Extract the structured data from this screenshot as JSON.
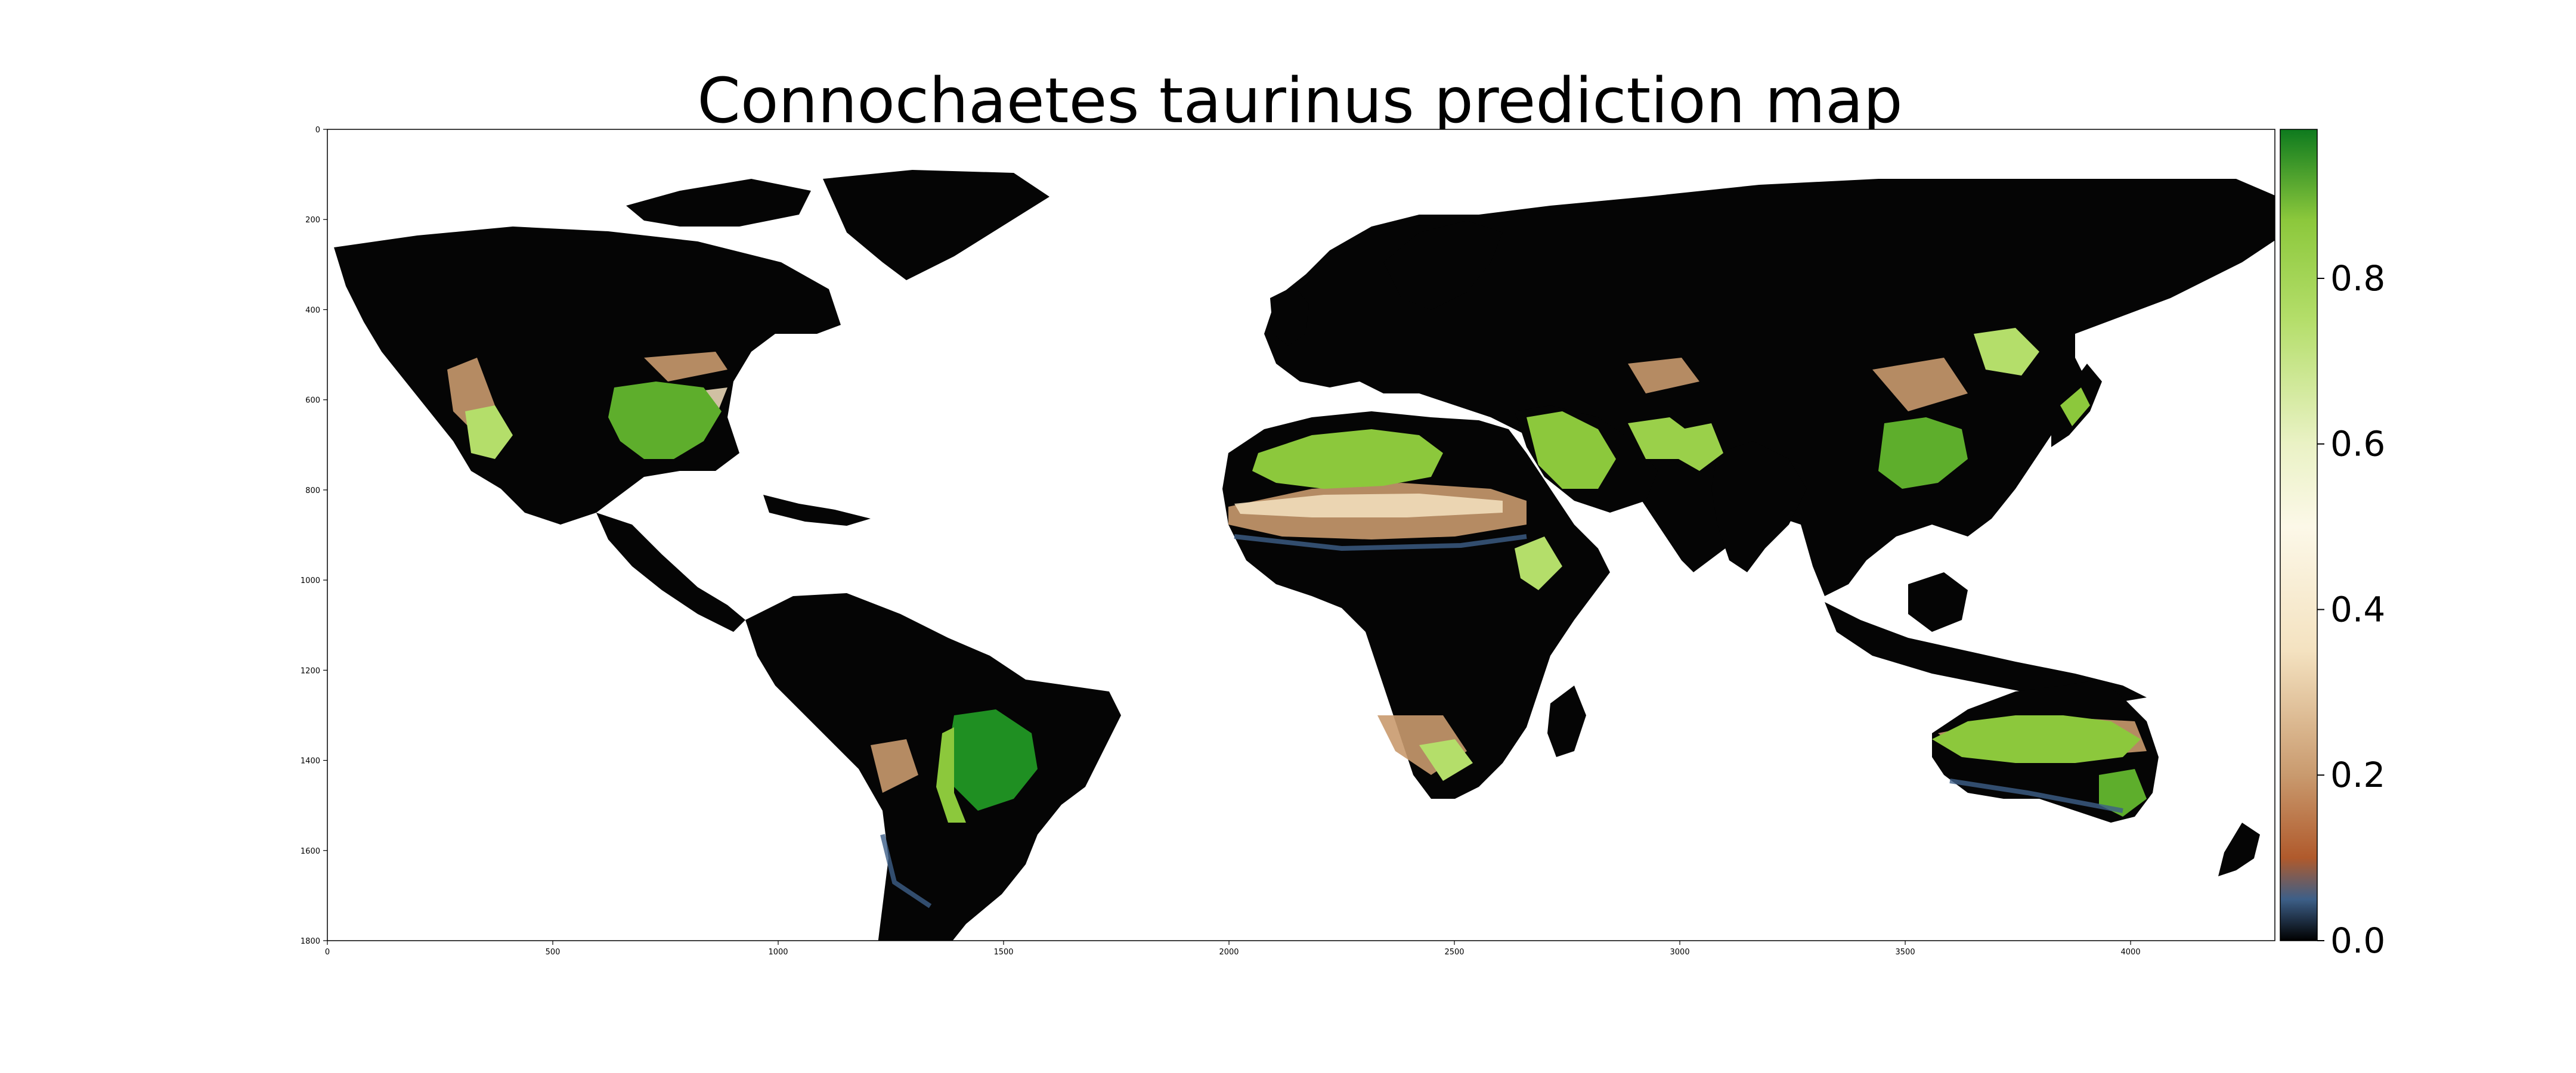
{
  "title": "Connochaetes taurinus prediction map",
  "map": {
    "x_range": [
      0,
      4320
    ],
    "y_range": [
      0,
      1800
    ],
    "x_ticks": [
      0,
      500,
      1000,
      1500,
      2000,
      2500,
      3000,
      3500,
      4000
    ],
    "y_ticks": [
      0,
      200,
      400,
      600,
      800,
      1000,
      1200,
      1400,
      1600,
      1800
    ],
    "y_inverted": true,
    "ocean_color": "#ffffff",
    "low_color": "#000000",
    "high_color": "#1a8c1a"
  },
  "colorbar": {
    "ticks": [
      "0.0",
      "0.2",
      "0.4",
      "0.6",
      "0.8"
    ],
    "tick_values": [
      0.0,
      0.2,
      0.4,
      0.6,
      0.8
    ],
    "range": [
      0.0,
      0.98
    ],
    "stops": [
      {
        "v": 0.0,
        "c": "#000000"
      },
      {
        "v": 0.05,
        "c": "#3d5f88"
      },
      {
        "v": 0.1,
        "c": "#b05a2c"
      },
      {
        "v": 0.2,
        "c": "#c99a6e"
      },
      {
        "v": 0.35,
        "c": "#f4e2c0"
      },
      {
        "v": 0.5,
        "c": "#fcf8e8"
      },
      {
        "v": 0.6,
        "c": "#eaf2c5"
      },
      {
        "v": 0.75,
        "c": "#b4de6a"
      },
      {
        "v": 0.87,
        "c": "#8cc83c"
      },
      {
        "v": 0.98,
        "c": "#0e7a1e"
      }
    ]
  }
}
